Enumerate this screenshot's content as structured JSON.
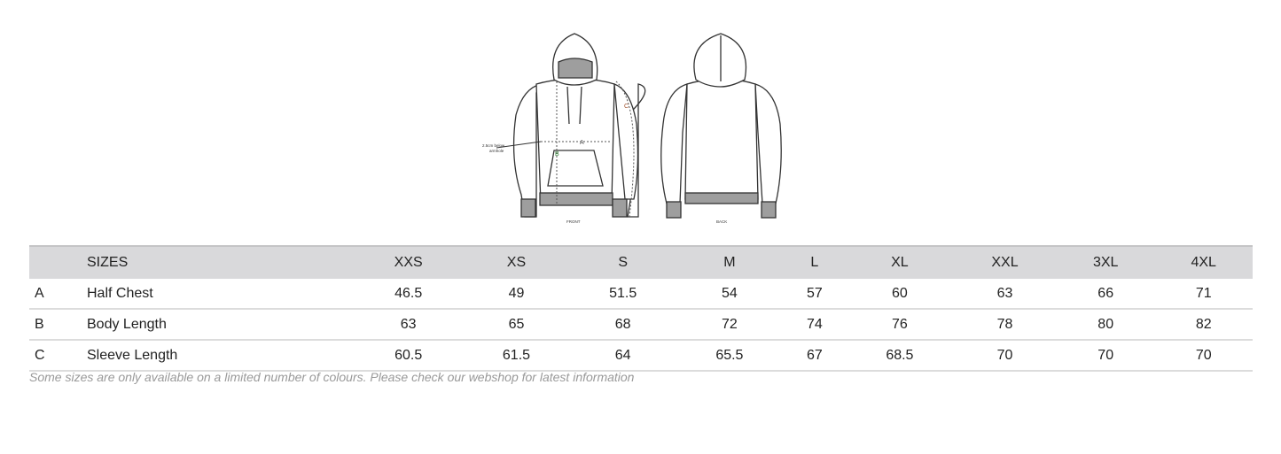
{
  "diagram": {
    "front_label": "FRONT",
    "back_label": "BACK",
    "armhole_note_1": "2.5cm below",
    "armhole_note_2": "armhole",
    "marker_a": "A",
    "marker_b": "B",
    "marker_c": "C",
    "colors": {
      "outline": "#333333",
      "rib": "#9e9e9e",
      "a": "#555555",
      "b": "#2e7d32",
      "c": "#a0522d"
    }
  },
  "table": {
    "header": {
      "letter": "",
      "label": "SIZES",
      "sizes": [
        "XXS",
        "XS",
        "S",
        "M",
        "L",
        "XL",
        "XXL",
        "3XL",
        "4XL"
      ]
    },
    "rows": [
      {
        "letter": "A",
        "label": "Half Chest",
        "values": [
          "46.5",
          "49",
          "51.5",
          "54",
          "57",
          "60",
          "63",
          "66",
          "71"
        ]
      },
      {
        "letter": "B",
        "label": "Body Length",
        "values": [
          "63",
          "65",
          "68",
          "72",
          "74",
          "76",
          "78",
          "80",
          "82"
        ]
      },
      {
        "letter": "C",
        "label": "Sleeve Length",
        "values": [
          "60.5",
          "61.5",
          "64",
          "65.5",
          "67",
          "68.5",
          "70",
          "70",
          "70"
        ]
      }
    ]
  },
  "note": "Some sizes are only available on a limited number of colours. Please check our webshop for latest information"
}
